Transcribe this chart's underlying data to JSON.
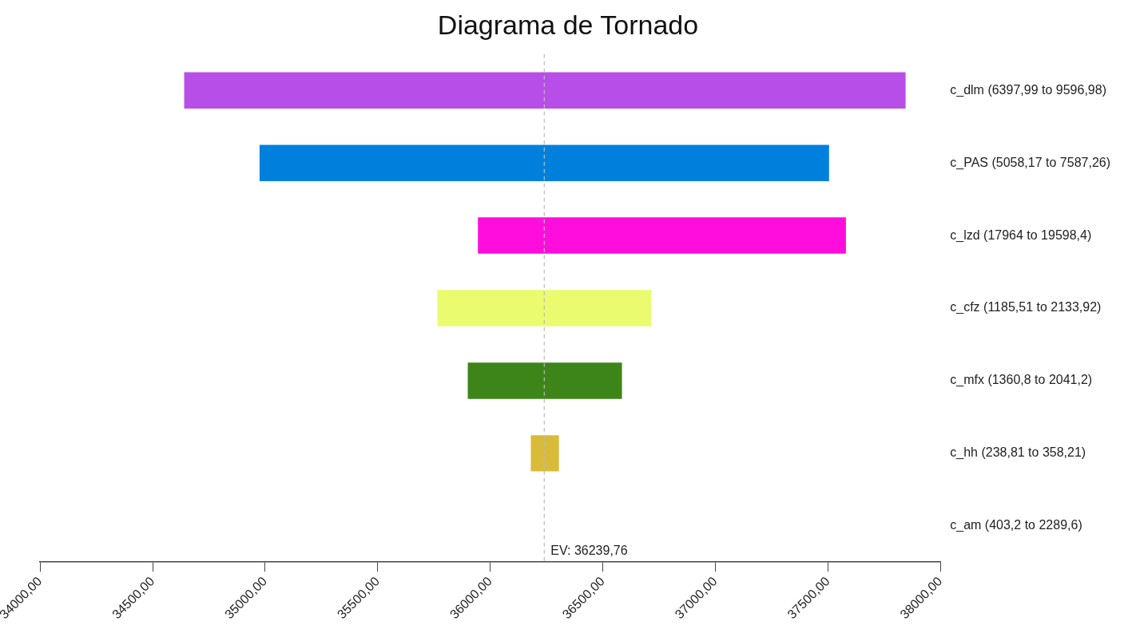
{
  "chart_data": {
    "type": "bar",
    "title": "Diagrama de Tornado",
    "orientation": "horizontal",
    "categories": [
      "c_dlm (6397,99 to 9596,98)",
      "c_PAS (5058,17 to 7587,26)",
      "c_lzd (17964 to 19598,4)",
      "c_cfz (1185,51 to 2133,92)",
      "c_mfx (1360,8 to 2041,2)",
      "c_hh (238,81 to 358,21)",
      "c_am (403,2 to 2289,6)"
    ],
    "base": [
      34640,
      34975,
      35945,
      35765,
      35900,
      36180,
      null
    ],
    "values": [
      3205,
      2530,
      1635,
      950,
      685,
      125,
      null
    ],
    "colors": [
      "#b84ee8",
      "#0080dd",
      "#ff0ddc",
      "#ebfb70",
      "#3d8518",
      "#d9bb3a",
      "#999999"
    ],
    "xlim": [
      34000,
      38000
    ],
    "xticks": [
      {
        "value": 34000,
        "label": "34000,00"
      },
      {
        "value": 34500,
        "label": "34500,00"
      },
      {
        "value": 35000,
        "label": "35000,00"
      },
      {
        "value": 35500,
        "label": "35500,00"
      },
      {
        "value": 36000,
        "label": "36000,00"
      },
      {
        "value": 36500,
        "label": "36500,00"
      },
      {
        "value": 37000,
        "label": "37000,00"
      },
      {
        "value": 37500,
        "label": "37500,00"
      },
      {
        "value": 38000,
        "label": "38000,00"
      }
    ],
    "ref_lines": [
      {
        "axis": "x",
        "value": 36239.76,
        "label": "EV: 36239,76",
        "color": "#bbbbbb",
        "line_style": "dashed"
      }
    ],
    "grid": false,
    "legend": false
  }
}
